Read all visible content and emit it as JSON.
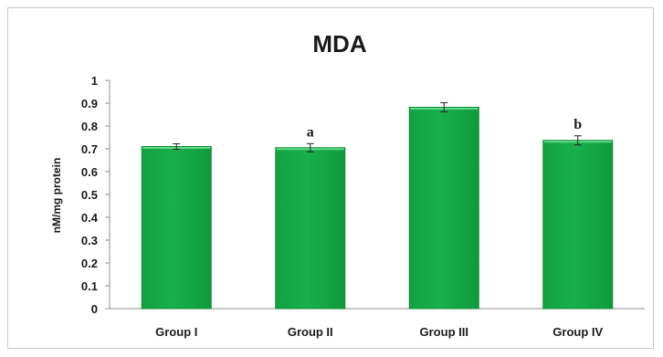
{
  "chart_data": {
    "type": "bar",
    "title": "MDA",
    "xlabel": "",
    "ylabel": "nM/mg protein",
    "categories": [
      "Group I",
      "Group II",
      "Group III",
      "Group IV"
    ],
    "values": [
      0.71,
      0.705,
      0.882,
      0.737
    ],
    "errors": [
      0.012,
      0.018,
      0.02,
      0.02
    ],
    "annotations": [
      "",
      "a",
      "",
      "b"
    ],
    "ylim": [
      0,
      1
    ],
    "yticks": [
      "0",
      "0.1",
      "0.2",
      "0.3",
      "0.4",
      "0.5",
      "0.6",
      "0.7",
      "0.8",
      "0.9",
      "1"
    ],
    "grid": false,
    "legend": "none",
    "bar_color": "#18b04c",
    "bar_edge_color": "#0e8a36"
  }
}
